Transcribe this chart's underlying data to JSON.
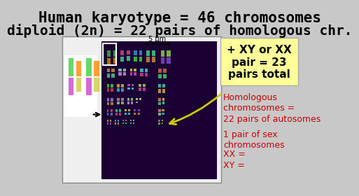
{
  "bg_color": "#c8c8c8",
  "title_line1": "Human karyotype = 46 chromosomes",
  "title_line2": "diploid (2n) = 22 pairs of homologous chr.",
  "title_fontsize": 15,
  "title_bold": true,
  "yellow_box_text": "+ XY or XX\npair = 23\npairs total",
  "yellow_box_color": "#ffff99",
  "yellow_box_border": "#cccc00",
  "scale_bar_text": "5 μm",
  "homologous_text": "Homologous\nchromosomes =",
  "homologous_color": "#cc0000",
  "text1": "22 pairs of autosomes",
  "text2": "1 pair of sex\nchromosomes",
  "text3": "XX =",
  "text4": "XY =",
  "text_color": "#cc0000",
  "arrow_color": "#cccc00",
  "white_panel_color": "#f0f0f0",
  "karyotype_bg": "#1a0033",
  "sidebar_arrow_color": "#000000"
}
